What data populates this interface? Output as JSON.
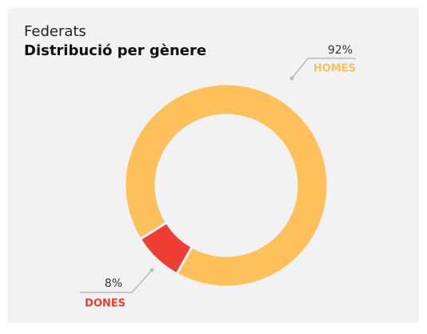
{
  "chart_data": {
    "type": "pie",
    "title": "Federats",
    "subtitle": "Distribució per gènere",
    "categories": [
      "HOMES",
      "DONES"
    ],
    "values": [
      92,
      8
    ],
    "value_labels": [
      "92%",
      "8%"
    ],
    "colors": [
      "#fdc05a",
      "#ee3d33"
    ]
  }
}
